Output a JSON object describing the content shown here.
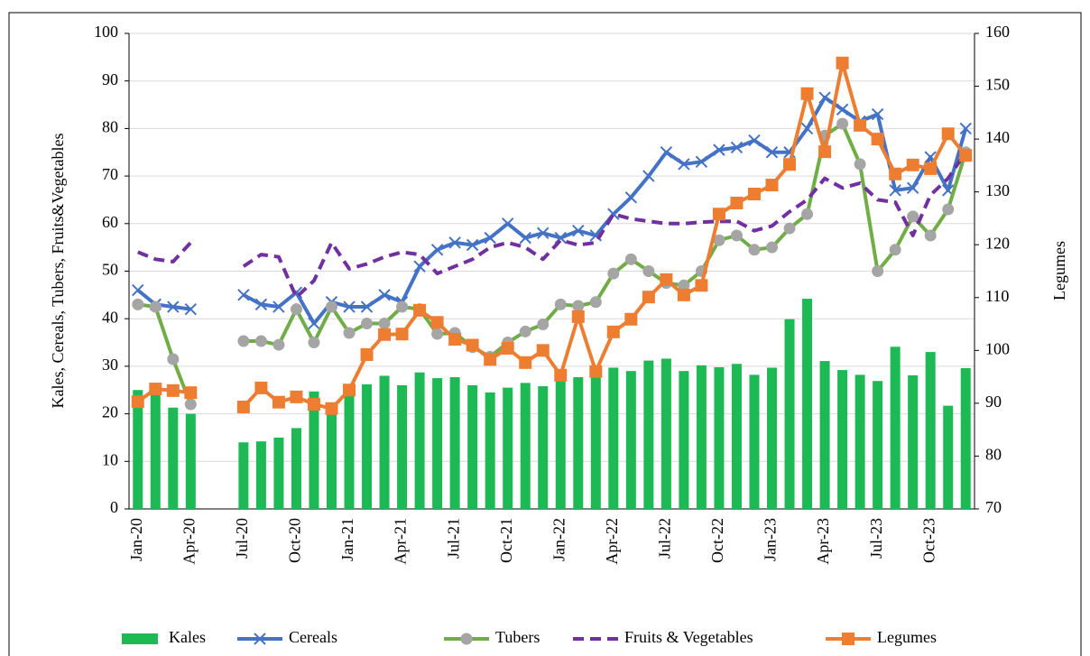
{
  "chart_data": {
    "type": "combo",
    "y_label": "Kales, Cereals, Tubers, Fruits&Vegetables",
    "y2_label": "Legumes",
    "categories": [
      "Jan-20",
      null,
      null,
      "Apr-20",
      null,
      null,
      "Jul-20",
      null,
      null,
      "Oct-20",
      null,
      null,
      "Jan-21",
      null,
      null,
      "Apr-21",
      null,
      null,
      "Jul-21",
      null,
      null,
      "Oct-21",
      null,
      null,
      "Jan-22",
      null,
      null,
      "Apr-22",
      null,
      null,
      "Jul-22",
      null,
      null,
      "Oct-22",
      null,
      null,
      "Jan-23",
      null,
      null,
      "Apr-23",
      null,
      null,
      "Jul-23",
      null,
      null,
      "Oct-23",
      null,
      null
    ],
    "ylim": [
      0,
      100
    ],
    "yticks": [
      0,
      10,
      20,
      30,
      40,
      50,
      60,
      70,
      80,
      90,
      100
    ],
    "y2lim": [
      70,
      160
    ],
    "y2ticks": [
      70,
      80,
      90,
      100,
      110,
      120,
      130,
      140,
      150,
      160
    ],
    "grid": true,
    "legend": "bottom",
    "series": [
      {
        "name": "Kales",
        "kind": "bar",
        "color": "#1db954",
        "values": [
          25,
          24,
          21.3,
          20,
          null,
          null,
          14,
          14.2,
          15,
          17,
          24.7,
          22,
          24,
          26.2,
          28,
          26,
          28.7,
          27.5,
          27.7,
          26,
          24.5,
          25.5,
          26.5,
          25.8,
          27,
          27.7,
          28.3,
          29.7,
          29,
          31.2,
          31.6,
          29,
          30.2,
          29.8,
          30.5,
          28.2,
          29.7,
          39.9,
          44.2,
          31.1,
          29.2,
          28.2,
          26.9,
          34.1,
          28.1,
          33,
          21.7,
          29.6
        ]
      },
      {
        "name": "Cereals",
        "kind": "line",
        "marker": "x",
        "color": "#4472c4",
        "values": [
          46,
          43,
          42.5,
          42,
          null,
          null,
          45,
          43,
          42.5,
          45.5,
          39,
          43.5,
          42.5,
          42.5,
          45,
          43.5,
          51,
          54.5,
          56,
          55.5,
          57,
          60,
          57,
          58,
          57,
          58.5,
          57.5,
          62,
          65.5,
          70,
          75,
          72.5,
          73,
          75.5,
          76,
          77.5,
          75,
          75,
          80,
          86.5,
          84,
          81.5,
          83,
          67,
          67.5,
          74,
          67,
          80
        ]
      },
      {
        "name": "Tubers",
        "kind": "line",
        "marker": "circle",
        "color": "#70ad47",
        "marker_color": "#a5a5a5",
        "values": [
          43,
          42.5,
          31.5,
          22,
          null,
          null,
          35.3,
          35.3,
          34.5,
          42,
          35,
          42.5,
          37,
          39,
          39,
          42.5,
          42,
          36.8,
          37,
          34,
          32,
          35,
          37.3,
          38.8,
          43,
          42.7,
          43.5,
          49.5,
          52.5,
          50,
          47.5,
          47,
          50,
          56.5,
          57.5,
          54.5,
          55,
          59,
          62,
          78.5,
          81,
          72.5,
          50,
          54.5,
          61.5,
          57.5,
          63,
          75
        ]
      },
      {
        "name": "Fruits & Vegetables",
        "kind": "line",
        "dashed": true,
        "color": "#7030a0",
        "values": [
          54,
          52.5,
          52,
          56,
          null,
          null,
          51,
          53.5,
          53,
          44.5,
          48,
          56,
          50.5,
          51.5,
          53,
          54,
          53.5,
          49.5,
          51,
          52.5,
          55,
          56,
          55,
          52.5,
          56.5,
          55.5,
          56,
          62,
          61,
          60.5,
          60,
          60,
          60.3,
          60.5,
          60.5,
          58.5,
          59.5,
          62.5,
          65,
          69.5,
          67.5,
          68.5,
          65,
          64.5,
          57.5,
          66,
          69.5,
          75
        ]
      },
      {
        "name": "Legumes",
        "kind": "line",
        "marker": "square",
        "axis": "y2",
        "color": "#ed7d31",
        "values": [
          90.3,
          92.7,
          92.4,
          92,
          null,
          null,
          89.3,
          92.9,
          90.2,
          91.2,
          89.8,
          89,
          92.5,
          99.2,
          103,
          103.1,
          107.6,
          105.3,
          102.1,
          101,
          98.3,
          100.4,
          97.7,
          100,
          95.3,
          106.4,
          96,
          103.5,
          105.9,
          110.1,
          113.4,
          110.5,
          112.3,
          125.8,
          127.9,
          129.6,
          131.3,
          135.2,
          148.6,
          137.6,
          154.4,
          142.6,
          140,
          133.4,
          135.1,
          134.4,
          141,
          136.9
        ]
      }
    ]
  }
}
